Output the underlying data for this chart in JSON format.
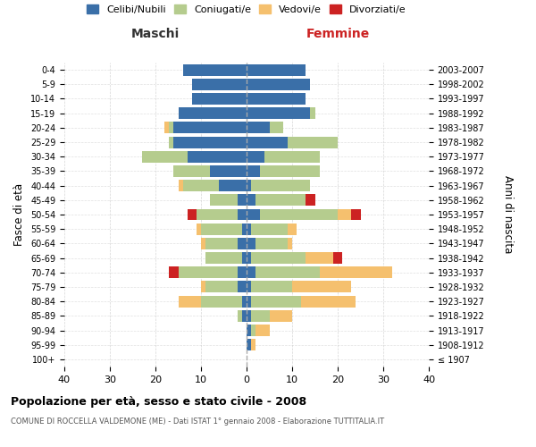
{
  "age_groups": [
    "100+",
    "95-99",
    "90-94",
    "85-89",
    "80-84",
    "75-79",
    "70-74",
    "65-69",
    "60-64",
    "55-59",
    "50-54",
    "45-49",
    "40-44",
    "35-39",
    "30-34",
    "25-29",
    "20-24",
    "15-19",
    "10-14",
    "5-9",
    "0-4"
  ],
  "birth_years": [
    "≤ 1907",
    "1908-1912",
    "1913-1917",
    "1918-1922",
    "1923-1927",
    "1928-1932",
    "1933-1937",
    "1938-1942",
    "1943-1947",
    "1948-1952",
    "1953-1957",
    "1958-1962",
    "1963-1967",
    "1968-1972",
    "1973-1977",
    "1978-1982",
    "1983-1987",
    "1988-1992",
    "1993-1997",
    "1998-2002",
    "2003-2007"
  ],
  "colors": {
    "celibi": "#3a6fa8",
    "coniugati": "#b5cc8e",
    "vedovi": "#f5c06e",
    "divorziati": "#cc2222"
  },
  "maschi": {
    "celibi": [
      0,
      0,
      0,
      1,
      1,
      2,
      2,
      1,
      2,
      1,
      2,
      2,
      6,
      8,
      13,
      16,
      16,
      15,
      12,
      12,
      14
    ],
    "coniugati": [
      0,
      0,
      0,
      1,
      9,
      7,
      13,
      8,
      7,
      9,
      9,
      6,
      8,
      8,
      10,
      1,
      1,
      0,
      0,
      0,
      0
    ],
    "vedovi": [
      0,
      0,
      0,
      0,
      5,
      1,
      0,
      0,
      1,
      1,
      0,
      0,
      1,
      0,
      0,
      0,
      1,
      0,
      0,
      0,
      0
    ],
    "divorziati": [
      0,
      0,
      0,
      0,
      0,
      0,
      2,
      0,
      0,
      0,
      2,
      0,
      0,
      0,
      0,
      0,
      0,
      0,
      0,
      0,
      0
    ]
  },
  "femmine": {
    "celibi": [
      0,
      1,
      1,
      1,
      1,
      1,
      2,
      1,
      2,
      1,
      3,
      2,
      1,
      3,
      4,
      9,
      5,
      14,
      13,
      14,
      13
    ],
    "coniugati": [
      0,
      0,
      1,
      4,
      11,
      9,
      14,
      12,
      7,
      8,
      17,
      11,
      13,
      13,
      12,
      11,
      3,
      1,
      0,
      0,
      0
    ],
    "vedovi": [
      0,
      1,
      3,
      5,
      12,
      13,
      16,
      6,
      1,
      2,
      3,
      0,
      0,
      0,
      0,
      0,
      0,
      0,
      0,
      0,
      0
    ],
    "divorziati": [
      0,
      0,
      0,
      0,
      0,
      0,
      0,
      2,
      0,
      0,
      2,
      2,
      0,
      0,
      0,
      0,
      0,
      0,
      0,
      0,
      0
    ]
  },
  "title1": "Popolazione per età, sesso e stato civile - 2008",
  "title2": "COMUNE DI ROCCELLA VALDEMONE (ME) - Dati ISTAT 1° gennaio 2008 - Elaborazione TUTTITALIA.IT",
  "xlabel_left": "Maschi",
  "xlabel_right": "Femmine",
  "ylabel_left": "Fasce di età",
  "ylabel_right": "Anni di nascita",
  "legend_labels": [
    "Celibi/Nubili",
    "Coniugati/e",
    "Vedovi/e",
    "Divorziati/e"
  ],
  "xlim": 40,
  "background_color": "#ffffff",
  "grid_color": "#cccccc",
  "bar_height": 0.8
}
